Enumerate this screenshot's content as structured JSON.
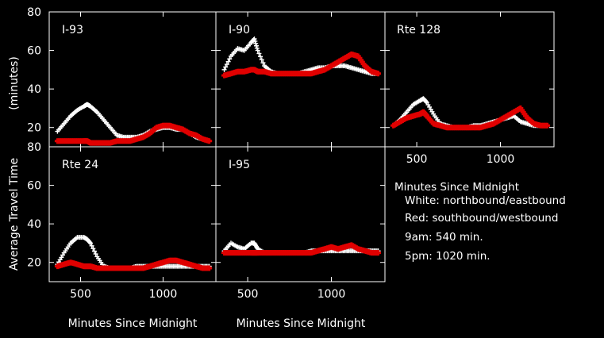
{
  "colors": {
    "background": "#000000",
    "northbound": "#ffffff",
    "southbound": "#e00000",
    "axis": "#ffffff"
  },
  "figure": {
    "ylabel_main": "Average Travel Time",
    "ylabel_units": "(minutes)",
    "xlabel": "Minutes Since Midnight"
  },
  "legend": {
    "title": "Minutes Since Midnight",
    "lines": [
      "White: northbound/eastbound",
      "Red: southbound/westbound",
      "9am: 540 min.",
      "5pm: 1020 min."
    ]
  },
  "chart_data": [
    {
      "type": "scatter",
      "title": "I-93",
      "xlim": [
        310,
        1320
      ],
      "ylim": [
        10,
        80
      ],
      "x": [
        360,
        400,
        440,
        480,
        520,
        540,
        560,
        600,
        640,
        680,
        720,
        760,
        800,
        840,
        880,
        920,
        960,
        1000,
        1040,
        1080,
        1120,
        1160,
        1200,
        1240,
        1280
      ],
      "series": [
        {
          "name": "White: northbound/eastbound",
          "color": "#ffffff",
          "values": [
            18,
            22,
            26,
            29,
            31,
            32,
            31,
            28,
            24,
            20,
            16,
            15,
            15,
            15,
            16,
            18,
            19,
            20,
            20,
            19,
            19,
            17,
            15,
            14,
            13
          ]
        },
        {
          "name": "Red: southbound/westbound",
          "color": "#e00000",
          "values": [
            13,
            13,
            13,
            13,
            13,
            13,
            12,
            12,
            12,
            12,
            13,
            13,
            13,
            14,
            15,
            17,
            20,
            21,
            21,
            20,
            19,
            17,
            16,
            14,
            13
          ]
        }
      ]
    },
    {
      "type": "scatter",
      "title": "I-90",
      "xlim": [
        310,
        1320
      ],
      "ylim": [
        10,
        80
      ],
      "x": [
        360,
        400,
        440,
        480,
        520,
        540,
        560,
        600,
        640,
        680,
        720,
        760,
        800,
        840,
        880,
        920,
        960,
        1000,
        1040,
        1080,
        1120,
        1160,
        1200,
        1240,
        1280
      ],
      "series": [
        {
          "name": "White: northbound/eastbound",
          "color": "#ffffff",
          "values": [
            50,
            57,
            61,
            60,
            64,
            66,
            60,
            52,
            49,
            48,
            48,
            48,
            48,
            49,
            50,
            51,
            51,
            52,
            52,
            52,
            51,
            50,
            49,
            48,
            48
          ]
        },
        {
          "name": "Red: southbound/westbound",
          "color": "#e00000",
          "values": [
            47,
            48,
            49,
            49,
            50,
            50,
            49,
            49,
            48,
            48,
            48,
            48,
            48,
            48,
            48,
            49,
            50,
            52,
            54,
            56,
            58,
            57,
            52,
            49,
            48
          ]
        }
      ]
    },
    {
      "type": "scatter",
      "title": "Rte 128",
      "xlim": [
        310,
        1320
      ],
      "ylim": [
        10,
        80
      ],
      "x": [
        360,
        400,
        440,
        480,
        520,
        540,
        560,
        600,
        640,
        680,
        720,
        760,
        800,
        840,
        880,
        920,
        960,
        1000,
        1040,
        1080,
        1120,
        1160,
        1200,
        1240,
        1280
      ],
      "series": [
        {
          "name": "White: northbound/eastbound",
          "color": "#ffffff",
          "values": [
            21,
            24,
            28,
            32,
            34,
            35,
            33,
            27,
            22,
            21,
            20,
            20,
            20,
            21,
            21,
            22,
            23,
            24,
            25,
            26,
            23,
            22,
            21,
            21,
            21
          ]
        },
        {
          "name": "Red: southbound/westbound",
          "color": "#e00000",
          "values": [
            21,
            23,
            25,
            26,
            27,
            28,
            26,
            22,
            21,
            20,
            20,
            20,
            20,
            20,
            20,
            21,
            22,
            24,
            26,
            28,
            30,
            25,
            22,
            21,
            21
          ]
        }
      ]
    },
    {
      "type": "scatter",
      "title": "Rte 24",
      "xlim": [
        310,
        1320
      ],
      "ylim": [
        10,
        80
      ],
      "x": [
        360,
        400,
        440,
        480,
        520,
        540,
        560,
        600,
        640,
        680,
        720,
        760,
        800,
        840,
        880,
        920,
        960,
        1000,
        1040,
        1080,
        1120,
        1160,
        1200,
        1240,
        1280
      ],
      "series": [
        {
          "name": "White: northbound/eastbound",
          "color": "#ffffff",
          "values": [
            19,
            25,
            30,
            33,
            33,
            32,
            30,
            23,
            18,
            17,
            17,
            17,
            17,
            18,
            18,
            18,
            18,
            18,
            18,
            18,
            18,
            18,
            18,
            18,
            18
          ]
        },
        {
          "name": "Red: southbound/westbound",
          "color": "#e00000",
          "values": [
            18,
            19,
            20,
            19,
            18,
            18,
            18,
            17,
            17,
            17,
            17,
            17,
            17,
            17,
            17,
            18,
            19,
            20,
            21,
            21,
            20,
            19,
            18,
            17,
            17
          ]
        }
      ]
    },
    {
      "type": "scatter",
      "title": "I-95",
      "xlim": [
        310,
        1320
      ],
      "ylim": [
        10,
        80
      ],
      "x": [
        360,
        400,
        440,
        480,
        520,
        540,
        560,
        600,
        640,
        680,
        720,
        760,
        800,
        840,
        880,
        920,
        960,
        1000,
        1040,
        1080,
        1120,
        1160,
        1200,
        1240,
        1280
      ],
      "series": [
        {
          "name": "White: northbound/eastbound",
          "color": "#ffffff",
          "values": [
            26,
            30,
            28,
            27,
            30,
            30,
            27,
            25,
            25,
            25,
            25,
            25,
            25,
            25,
            26,
            26,
            26,
            26,
            26,
            26,
            26,
            26,
            26,
            26,
            26
          ]
        },
        {
          "name": "Red: southbound/westbound",
          "color": "#e00000",
          "values": [
            25,
            25,
            25,
            25,
            25,
            25,
            25,
            25,
            25,
            25,
            25,
            25,
            25,
            25,
            25,
            26,
            27,
            28,
            27,
            28,
            29,
            27,
            26,
            25,
            25
          ]
        }
      ]
    }
  ],
  "axes": {
    "y_ticks": [
      20,
      40,
      60,
      80
    ],
    "y_tick_labels": [
      "20",
      "40",
      "60",
      "80"
    ],
    "x_ticks": [
      500,
      1000
    ],
    "x_tick_labels": [
      "500",
      "1000"
    ]
  }
}
